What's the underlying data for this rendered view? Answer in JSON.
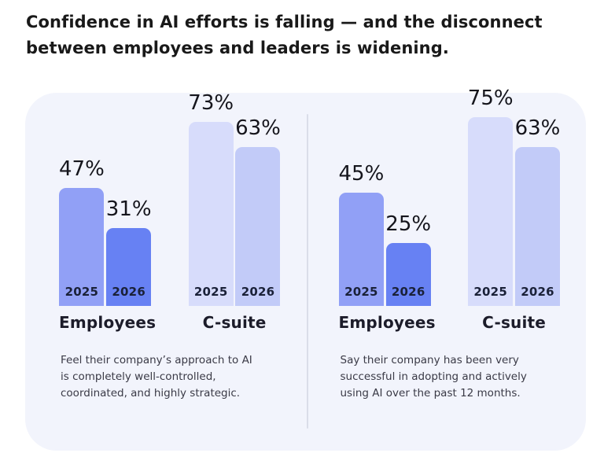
{
  "header": {
    "title_lines": [
      "Confidence in AI efforts is falling — and the disconnect",
      "between employees and leaders is widening."
    ]
  },
  "chart_data": [
    {
      "type": "bar",
      "panel": "left",
      "categories": [
        "Employees",
        "C-suite"
      ],
      "series": [
        {
          "name": "2025",
          "values": [
            47,
            73
          ],
          "labels": [
            "47%",
            "73%"
          ]
        },
        {
          "name": "2026",
          "values": [
            31,
            63
          ],
          "labels": [
            "31%",
            "63%"
          ]
        }
      ],
      "unit": "%",
      "ylim": [
        0,
        100
      ],
      "grid": false,
      "value_labels_position": "above-bars",
      "series_labels_position": "inside-bar-bottom",
      "caption_lines": [
        "Feel their company’s approach to AI",
        "is completely well-controlled,",
        "coordinated, and highly strategic."
      ]
    },
    {
      "type": "bar",
      "panel": "right",
      "categories": [
        "Employees",
        "C-suite"
      ],
      "series": [
        {
          "name": "2025",
          "values": [
            45,
            75
          ],
          "labels": [
            "45%",
            "75%"
          ]
        },
        {
          "name": "2026",
          "values": [
            25,
            63
          ],
          "labels": [
            "25%",
            "63%"
          ]
        }
      ],
      "unit": "%",
      "ylim": [
        0,
        100
      ],
      "grid": false,
      "value_labels_position": "above-bars",
      "series_labels_position": "inside-bar-bottom",
      "caption_lines": [
        "Say their company has been very",
        "successful in adopting and actively",
        "using AI over the past 12 months."
      ]
    }
  ],
  "colors": {
    "panel_background": "#f2f4fc",
    "bar_employees_2025": "#91a0f6",
    "bar_employees_2026": "#6781f3",
    "bar_csuite_2025": "#d7dcfb",
    "bar_csuite_2026": "#c2cbf8",
    "title_text": "#191919",
    "value_label_text": "#15151c",
    "year_label_text": "#1a2138",
    "group_label_text": "#1c1c2a",
    "caption_text": "#3a3a46",
    "divider": "#dadde9"
  }
}
